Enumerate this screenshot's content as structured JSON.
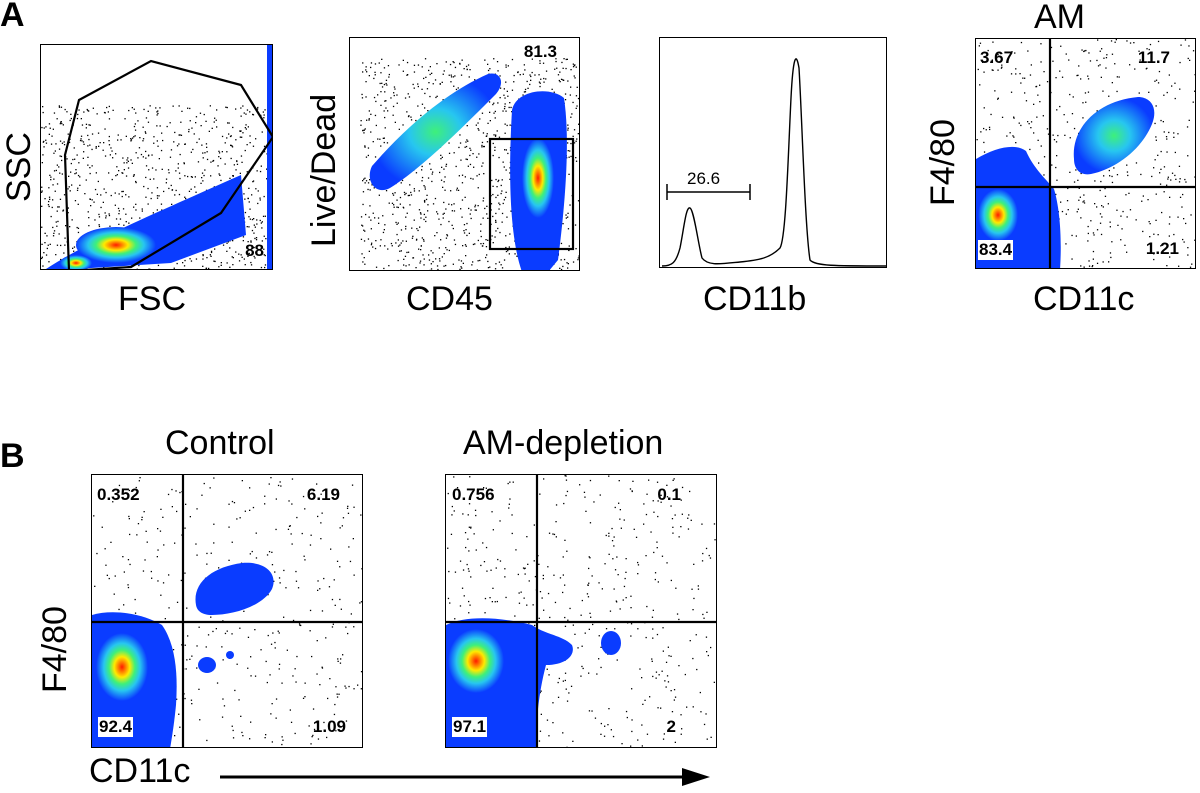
{
  "panels": {
    "a": {
      "letter": "A",
      "plots": [
        {
          "id": "fsc-ssc",
          "x_label": "FSC",
          "y_label": "SSC",
          "gate_value": "88"
        },
        {
          "id": "cd45-livedead",
          "x_label": "CD45",
          "y_label": "Live/Dead",
          "gate_value": "81.3"
        },
        {
          "id": "cd11b-hist",
          "x_label": "CD11b",
          "gate_value": "26.6"
        },
        {
          "id": "am-quadrant",
          "title": "AM",
          "x_label": "CD11c",
          "y_label": "F4/80",
          "quadrants": {
            "top_left": "3.67",
            "top_right": "11.7",
            "bottom_left": "83.4",
            "bottom_right": "1.21"
          }
        }
      ]
    },
    "b": {
      "letter": "B",
      "y_label": "F4/80",
      "x_label": "CD11c",
      "plots": [
        {
          "id": "control",
          "title": "Control",
          "quadrants": {
            "top_left": "0.352",
            "top_right": "6.19",
            "bottom_left": "92.4",
            "bottom_right": "1.09"
          }
        },
        {
          "id": "am-depletion",
          "title": "AM-depletion",
          "quadrants": {
            "top_left": "0.756",
            "top_right": "0.1",
            "bottom_left": "97.1",
            "bottom_right": "2"
          }
        }
      ]
    }
  },
  "colors": {
    "density_low": "#0a3cff",
    "density_mid": "#27e0d6",
    "density_high2": "#ffea00",
    "density_high": "#ff1a00",
    "line": "#000000"
  }
}
